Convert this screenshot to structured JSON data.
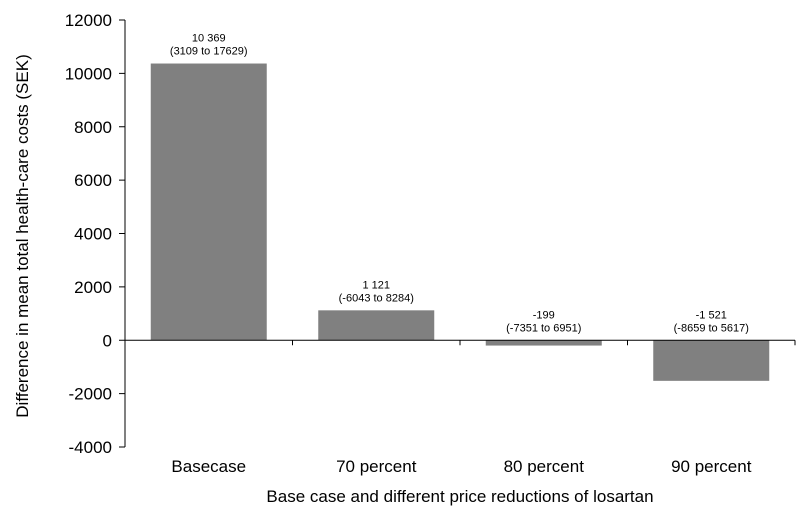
{
  "chart_data": {
    "type": "bar",
    "categories": [
      "Basecase",
      "70 percent",
      "80 percent",
      "90 percent"
    ],
    "values": [
      10369,
      1121,
      -199,
      -1521
    ],
    "data_labels": [
      {
        "value": "10 369",
        "ci": "(3109 to 17629)"
      },
      {
        "value": "1 121",
        "ci": "(-6043 to 8284)"
      },
      {
        "value": "-199",
        "ci": "(-7351 to 6951)"
      },
      {
        "value": "-1 521",
        "ci": "(-8659 to 5617)"
      }
    ],
    "xlabel": "Base case and different price reductions of losartan",
    "ylabel": "Difference in mean total health-care costs (SEK)",
    "ylim": [
      -4000,
      12000
    ],
    "yticks": [
      -4000,
      -2000,
      0,
      2000,
      4000,
      6000,
      8000,
      10000,
      12000
    ],
    "bar_color": "#808080",
    "grid": false
  }
}
